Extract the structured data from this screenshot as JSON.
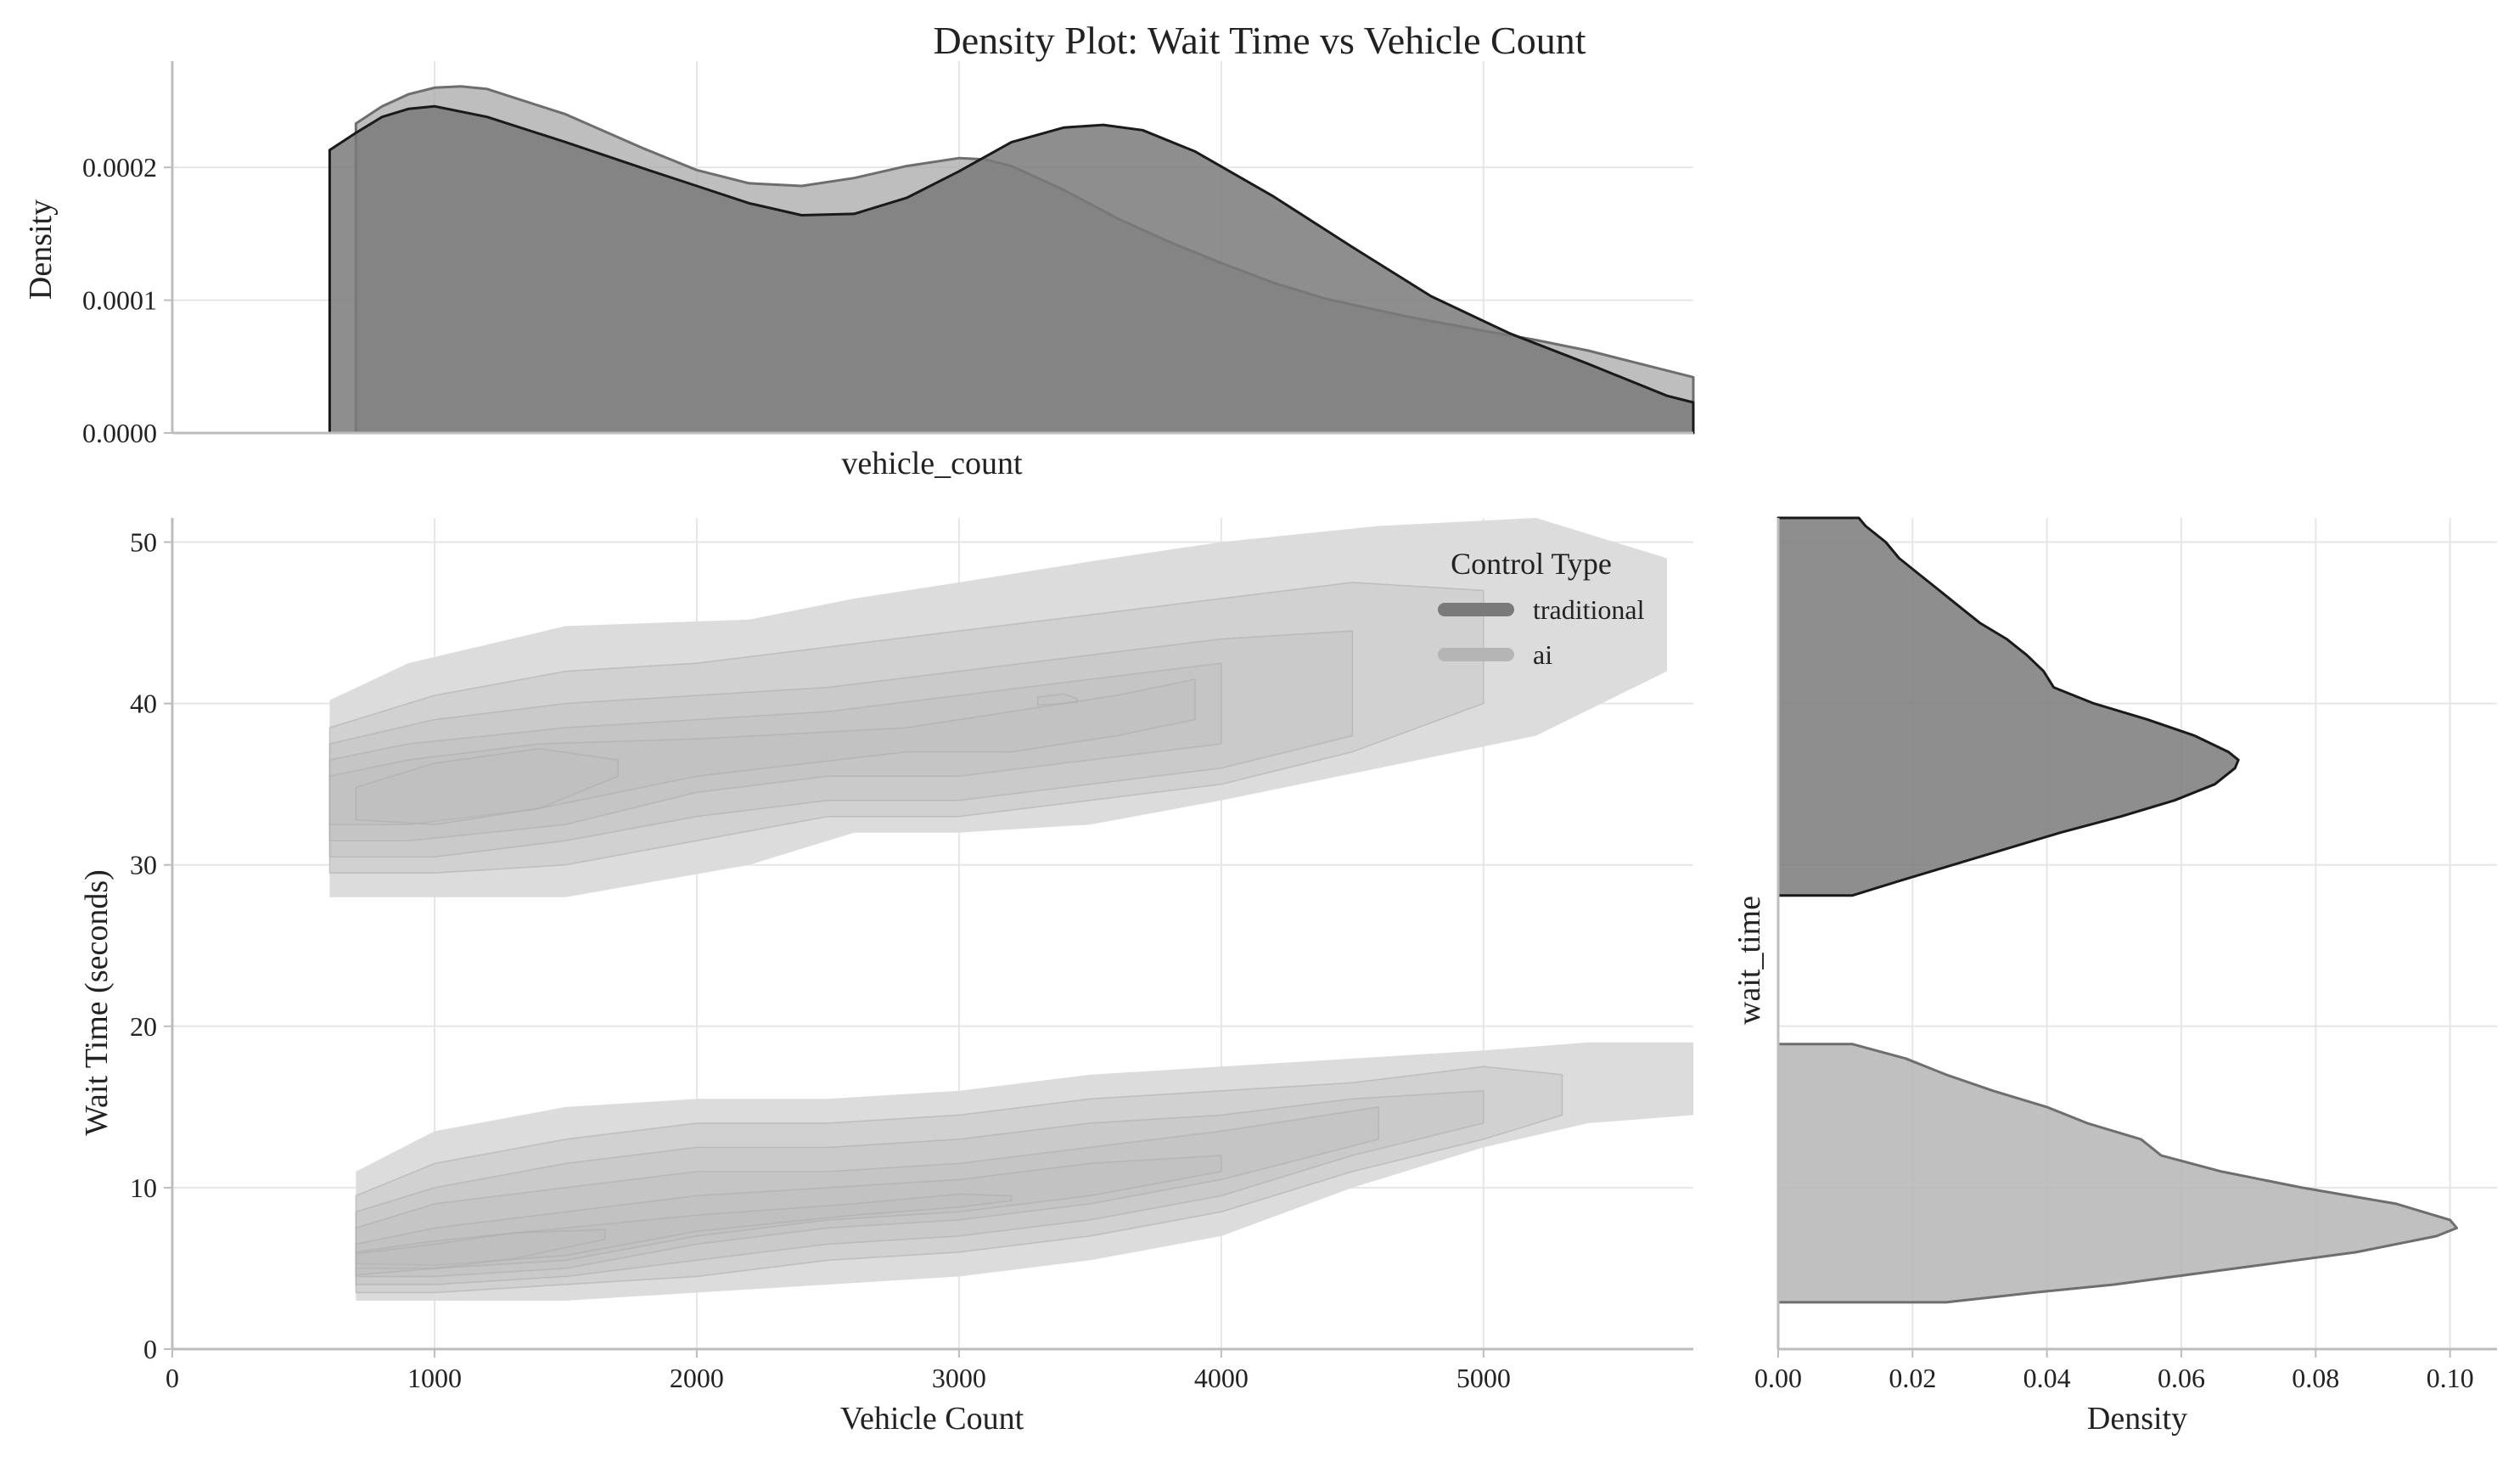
{
  "title": "Density Plot: Wait Time vs Vehicle Count",
  "chart_data": [
    {
      "id": "top-marginal",
      "type": "area",
      "title": "",
      "xlabel": "vehicle_count",
      "ylabel": "Density",
      "xlim": [
        0,
        5800
      ],
      "ylim": [
        0,
        0.00028
      ],
      "grid": true,
      "yticks": [
        "0.0000",
        "0.0001",
        "0.0002"
      ],
      "ytick_values": [
        0,
        0.0001,
        0.0002
      ],
      "xticks_shown": false,
      "series": [
        {
          "name": "traditional",
          "color": "#7a7a7a",
          "edge": "#1a1a1a",
          "x": [
            600,
            600,
            700,
            800,
            900,
            1000,
            1200,
            1500,
            1800,
            2000,
            2200,
            2400,
            2600,
            2800,
            3000,
            3200,
            3400,
            3550,
            3700,
            3900,
            4200,
            4500,
            4800,
            5100,
            5400,
            5700,
            5800,
            5800
          ],
          "y": [
            0,
            0.000213,
            0.000226,
            0.000238,
            0.000244,
            0.000246,
            0.000238,
            0.000219,
            0.000199,
            0.000186,
            0.000173,
            0.000164,
            0.000165,
            0.000177,
            0.000197,
            0.000219,
            0.00023,
            0.000232,
            0.000228,
            0.000212,
            0.000178,
            0.00014,
            0.000103,
            7.5e-05,
            5.2e-05,
            2.8e-05,
            2.3e-05,
            0
          ]
        },
        {
          "name": "ai",
          "color": "#a8a8a8",
          "edge": "#6e6e6e",
          "x": [
            700,
            700,
            800,
            900,
            1000,
            1100,
            1200,
            1500,
            1800,
            2000,
            2200,
            2400,
            2600,
            2800,
            3000,
            3100,
            3200,
            3400,
            3600,
            3800,
            4000,
            4200,
            4400,
            4700,
            5000,
            5200,
            5400,
            5600,
            5800,
            5800
          ],
          "y": [
            0,
            0.000233,
            0.000246,
            0.000255,
            0.00026,
            0.000261,
            0.000259,
            0.00024,
            0.000214,
            0.000198,
            0.000188,
            0.000186,
            0.000192,
            0.000201,
            0.000207,
            0.000206,
            0.000201,
            0.000183,
            0.000162,
            0.000144,
            0.000128,
            0.000113,
            0.000101,
            8.8e-05,
            7.7e-05,
            7e-05,
            6.2e-05,
            5.2e-05,
            4.2e-05,
            0
          ]
        }
      ]
    },
    {
      "id": "joint-kde",
      "type": "contour",
      "title": "",
      "xlabel": "Vehicle Count",
      "ylabel": "Wait Time (seconds)",
      "xlim": [
        0,
        5800
      ],
      "ylim": [
        0,
        51.5
      ],
      "grid": true,
      "xticks": [
        "0",
        "1000",
        "2000",
        "3000",
        "4000",
        "5000"
      ],
      "xtick_values": [
        0,
        1000,
        2000,
        3000,
        4000,
        5000
      ],
      "yticks": [
        "0",
        "10",
        "20",
        "30",
        "40",
        "50"
      ],
      "ytick_values": [
        0,
        10,
        20,
        30,
        40,
        50
      ],
      "legend": {
        "title": "Control Type",
        "position": "top-right",
        "entries": [
          {
            "label": "traditional",
            "color": "#7a7a7a"
          },
          {
            "label": "ai",
            "color": "#b5b5b5"
          }
        ]
      },
      "series": [
        {
          "name": "traditional",
          "levels": [
            {
              "cx": [
                600,
                900,
                1500,
                2200,
                2600,
                3000,
                3500,
                4000,
                4600,
                5200,
                5700
              ],
              "upper": [
                40.2,
                42.5,
                44.8,
                45.2,
                46.5,
                47.5,
                48.8,
                50,
                51,
                51.5,
                49
              ],
              "lower": [
                28,
                28,
                28,
                30,
                32,
                32,
                32.5,
                34,
                36,
                38,
                42
              ]
            },
            {
              "cx": [
                600,
                1000,
                1500,
                2000,
                2500,
                3000,
                3500,
                4000,
                4500,
                5000
              ],
              "upper": [
                38.5,
                40.5,
                42,
                42.5,
                43.5,
                44.5,
                45.5,
                46.5,
                47.5,
                47
              ],
              "lower": [
                29.5,
                29.5,
                30,
                31.5,
                33,
                33,
                34,
                35,
                37,
                40
              ]
            },
            {
              "cx": [
                600,
                1000,
                1500,
                2000,
                2500,
                3000,
                3500,
                4000,
                4500
              ],
              "upper": [
                37.5,
                39,
                40,
                40.5,
                41,
                42,
                43,
                44,
                44.5
              ],
              "lower": [
                30.5,
                30.5,
                31.5,
                33,
                34,
                34,
                35,
                36,
                38
              ]
            },
            {
              "cx": [
                600,
                900,
                1500,
                2000,
                2500,
                3000,
                3500,
                4000
              ],
              "upper": [
                36.5,
                37.5,
                38.5,
                39,
                39.5,
                40.5,
                41.5,
                42.5
              ],
              "lower": [
                31.5,
                31.5,
                32.5,
                34.5,
                35.5,
                35.5,
                36.5,
                37.5
              ]
            },
            {
              "cx": [
                600,
                900,
                1400,
                2000,
                2800,
                3200,
                3600,
                3900
              ],
              "upper": [
                35.5,
                36.5,
                37.5,
                37.8,
                38.5,
                39.5,
                40.5,
                41.5
              ],
              "lower": [
                32.5,
                32.5,
                33.5,
                35.5,
                37,
                37,
                38,
                39
              ]
            },
            {
              "cx": [
                700,
                1000,
                1400,
                1700
              ],
              "upper": [
                34.8,
                36.3,
                37.2,
                36.5
              ],
              "lower": [
                32.8,
                32.5,
                33.5,
                35.5
              ]
            },
            {
              "cx": [
                3300,
                3400,
                3450
              ],
              "upper": [
                40.4,
                40.6,
                40.3
              ],
              "lower": [
                39.9,
                40,
                40.1
              ]
            }
          ]
        },
        {
          "name": "ai",
          "levels": [
            {
              "cx": [
                700,
                1000,
                1500,
                2000,
                2500,
                3000,
                3500,
                4000,
                4500,
                5000,
                5400,
                5800
              ],
              "upper": [
                11,
                13.5,
                15,
                15.5,
                15.5,
                16,
                17,
                17.5,
                18,
                18.5,
                19,
                19
              ],
              "lower": [
                3,
                3,
                3,
                3.5,
                4,
                4.5,
                5.5,
                7,
                10,
                12.5,
                14,
                14.5
              ]
            },
            {
              "cx": [
                700,
                1000,
                1500,
                2000,
                2500,
                3000,
                3500,
                4000,
                4500,
                5000,
                5300
              ],
              "upper": [
                9.5,
                11.5,
                13,
                14,
                14,
                14.5,
                15.5,
                16,
                16.5,
                17.5,
                17
              ],
              "lower": [
                3.5,
                3.5,
                4,
                4.5,
                5.5,
                6,
                7,
                8.5,
                11,
                13,
                14.5
              ]
            },
            {
              "cx": [
                700,
                1000,
                1500,
                2000,
                2500,
                3000,
                3500,
                4000,
                4500,
                5000
              ],
              "upper": [
                8.5,
                10,
                11.5,
                12.5,
                12.5,
                13,
                14,
                14.5,
                15.5,
                16
              ],
              "lower": [
                4,
                4,
                4.5,
                5.5,
                6.5,
                7,
                8,
                9.5,
                12,
                14
              ]
            },
            {
              "cx": [
                700,
                1000,
                1500,
                2000,
                2500,
                3000,
                3500,
                4000,
                4600
              ],
              "upper": [
                7.5,
                9,
                10,
                11,
                11,
                11.5,
                12.5,
                13.5,
                15
              ],
              "lower": [
                4.5,
                4.5,
                5,
                6.5,
                7.5,
                8,
                9,
                10.5,
                13
              ]
            },
            {
              "cx": [
                700,
                1000,
                1500,
                2000,
                2500,
                3000,
                3500,
                4000
              ],
              "upper": [
                6.5,
                7.5,
                8.5,
                9.5,
                10,
                10.5,
                11.5,
                12
              ],
              "lower": [
                5,
                5,
                5.5,
                7,
                8,
                8.5,
                9.5,
                11
              ]
            },
            {
              "cx": [
                700,
                1000,
                1500,
                2000,
                2600,
                3000,
                3200
              ],
              "upper": [
                6,
                6.7,
                7.5,
                8.3,
                9,
                9.6,
                9.5
              ],
              "lower": [
                5.3,
                5.2,
                5.8,
                7.3,
                8.3,
                8.8,
                9.2
              ]
            },
            {
              "cx": [
                700,
                1000,
                1300,
                1650
              ],
              "upper": [
                5.9,
                6.5,
                7.2,
                7.4
              ],
              "lower": [
                4.6,
                5,
                5.6,
                6.8
              ]
            }
          ]
        }
      ]
    },
    {
      "id": "right-marginal",
      "type": "area",
      "title": "",
      "xlabel": "Density",
      "ylabel": "wait_time",
      "xlim": [
        0,
        0.107
      ],
      "ylim": [
        0,
        51.5
      ],
      "grid": true,
      "xticks": [
        "0.00",
        "0.02",
        "0.04",
        "0.06",
        "0.08",
        "0.10"
      ],
      "xtick_values": [
        0,
        0.02,
        0.04,
        0.06,
        0.08,
        0.1
      ],
      "yticks_shown": false,
      "series": [
        {
          "name": "traditional",
          "color": "#7a7a7a",
          "edge": "#1a1a1a",
          "y": [
            28.1,
            28.1,
            29,
            30,
            31,
            32,
            33,
            34,
            35,
            36,
            36.5,
            37,
            38,
            39,
            40,
            41,
            42,
            43,
            44,
            45,
            46,
            47,
            48,
            49,
            50,
            51,
            51.5,
            51.5
          ],
          "x": [
            0,
            0.011,
            0.018,
            0.026,
            0.034,
            0.042,
            0.051,
            0.059,
            0.065,
            0.068,
            0.0685,
            0.067,
            0.062,
            0.055,
            0.047,
            0.041,
            0.0395,
            0.037,
            0.034,
            0.03,
            0.027,
            0.024,
            0.021,
            0.018,
            0.016,
            0.013,
            0.012,
            0
          ]
        },
        {
          "name": "ai",
          "color": "#b5b5b5",
          "edge": "#6e6e6e",
          "y": [
            2.9,
            2.9,
            3.5,
            4,
            5,
            6,
            7,
            7.5,
            8,
            9,
            10,
            11,
            12,
            13,
            14,
            15,
            16,
            17,
            18,
            18.9,
            18.9
          ],
          "x": [
            0,
            0.025,
            0.038,
            0.05,
            0.068,
            0.086,
            0.098,
            0.101,
            0.1,
            0.092,
            0.078,
            0.066,
            0.057,
            0.054,
            0.046,
            0.04,
            0.032,
            0.025,
            0.019,
            0.011,
            0
          ]
        }
      ]
    }
  ]
}
